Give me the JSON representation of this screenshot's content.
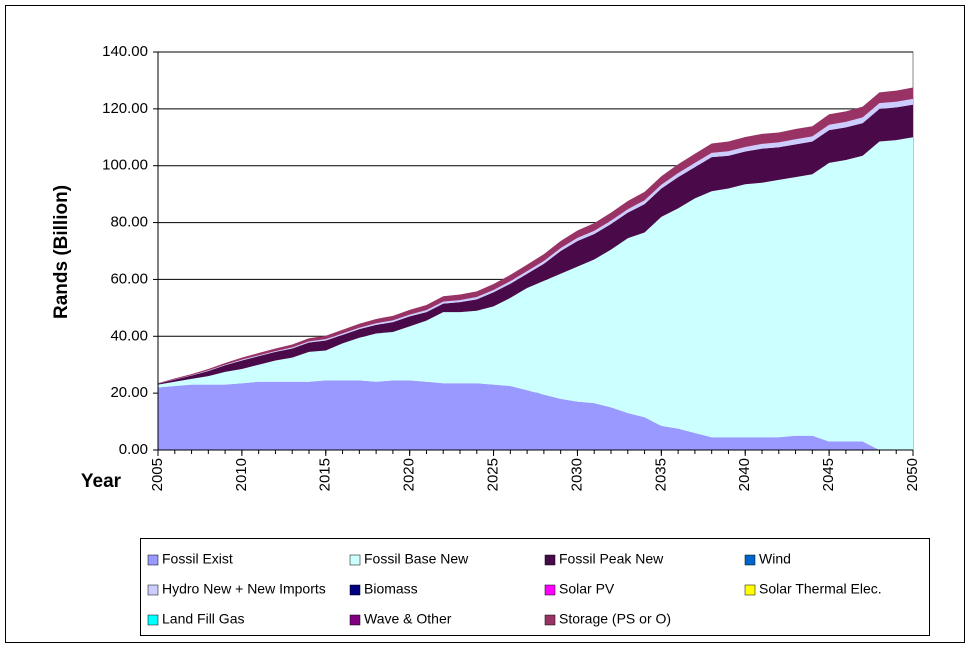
{
  "chart_data": {
    "type": "stacked-area",
    "y_label": "Rands (Billion)",
    "x_label": "Year",
    "x": [
      2005,
      2006,
      2007,
      2008,
      2009,
      2010,
      2011,
      2012,
      2013,
      2014,
      2015,
      2016,
      2017,
      2018,
      2019,
      2020,
      2021,
      2022,
      2023,
      2024,
      2025,
      2026,
      2027,
      2028,
      2029,
      2030,
      2031,
      2032,
      2033,
      2034,
      2035,
      2036,
      2037,
      2038,
      2039,
      2040,
      2041,
      2042,
      2043,
      2044,
      2045,
      2046,
      2047,
      2048,
      2049,
      2050
    ],
    "xlim": [
      2005,
      2050
    ],
    "xticks": [
      2005,
      2010,
      2015,
      2020,
      2025,
      2030,
      2035,
      2040,
      2045,
      2050
    ],
    "ylim": [
      0,
      140
    ],
    "yticks": [
      {
        "value": 0,
        "label": "0.00"
      },
      {
        "value": 20,
        "label": "20.00"
      },
      {
        "value": 40,
        "label": "40.00"
      },
      {
        "value": 60,
        "label": "60.00"
      },
      {
        "value": 80,
        "label": "80.00"
      },
      {
        "value": 100,
        "label": "100.00"
      },
      {
        "value": 120,
        "label": "120.00"
      },
      {
        "value": 140,
        "label": "140.00"
      }
    ],
    "grid": true,
    "legend": "bottom",
    "series": [
      {
        "name": "Fossil Exist",
        "color": "#9999ff",
        "values": [
          22,
          22.5,
          23,
          23,
          23,
          23.5,
          24,
          24,
          24,
          24,
          24.5,
          24.5,
          24.5,
          24,
          24.5,
          24.5,
          24,
          23.5,
          23.5,
          23.5,
          23,
          22.5,
          21,
          19.5,
          18,
          17,
          16.5,
          15,
          13,
          11.5,
          8.5,
          7.5,
          6,
          4.5,
          4.5,
          4.5,
          4.5,
          4.5,
          5,
          5,
          3,
          3,
          3,
          0,
          0,
          0
        ]
      },
      {
        "name": "Fossil Base New",
        "color": "#ccffff",
        "values": [
          1,
          1.5,
          2,
          3,
          4.5,
          5,
          6,
          7.5,
          8.5,
          10.5,
          10.5,
          13,
          15,
          17,
          17,
          19,
          21.5,
          25,
          25,
          25.5,
          27.5,
          31,
          36,
          40,
          44,
          47.5,
          50.5,
          55.5,
          61.5,
          65,
          73.5,
          77.5,
          82.5,
          86.5,
          87.5,
          89,
          89.5,
          90.5,
          91,
          92,
          98,
          99,
          100.5,
          108.5,
          109,
          110
        ]
      },
      {
        "name": "Fossil Peak New",
        "color": "#4a0a4a",
        "values": [
          0.3,
          0.8,
          1.2,
          1.8,
          2.3,
          3,
          3,
          3,
          3.2,
          3.3,
          3.5,
          3,
          3,
          3,
          3.5,
          3.5,
          3,
          3,
          3.5,
          4,
          5,
          5,
          5,
          6,
          8,
          9,
          9,
          9,
          9,
          10,
          10,
          11,
          11,
          12,
          11.5,
          11.5,
          12,
          11.5,
          11.5,
          11.5,
          11.5,
          11.5,
          11.5,
          11.5,
          11.5,
          11.5
        ]
      },
      {
        "name": "Wind",
        "color": "#0066cc",
        "values": [
          0,
          0,
          0,
          0,
          0,
          0,
          0,
          0,
          0,
          0,
          0,
          0,
          0,
          0,
          0,
          0,
          0,
          0,
          0,
          0,
          0,
          0,
          0,
          0,
          0,
          0,
          0,
          0,
          0,
          0,
          0,
          0,
          0,
          0,
          0,
          0,
          0,
          0,
          0,
          0,
          0,
          0,
          0,
          0,
          0,
          0
        ]
      },
      {
        "name": "Hydro New + New  Imports",
        "color": "#ccccff",
        "values": [
          0,
          0.1,
          0.1,
          0.2,
          0.2,
          0.3,
          0.3,
          0.3,
          0.4,
          0.4,
          0.5,
          0.5,
          0.5,
          0.6,
          0.6,
          0.6,
          0.7,
          0.7,
          0.7,
          0.8,
          0.8,
          0.9,
          0.9,
          1,
          1,
          1.1,
          1.1,
          1.2,
          1.2,
          1.3,
          1.3,
          1.4,
          1.5,
          1.5,
          1.6,
          1.6,
          1.7,
          1.7,
          1.8,
          1.8,
          1.9,
          1.9,
          2,
          2,
          2,
          2
        ]
      },
      {
        "name": "Biomass",
        "color": "#000080",
        "values": [
          0,
          0,
          0,
          0,
          0,
          0,
          0,
          0,
          0,
          0,
          0,
          0,
          0,
          0,
          0,
          0,
          0,
          0,
          0,
          0,
          0,
          0,
          0,
          0,
          0,
          0,
          0,
          0,
          0,
          0,
          0,
          0,
          0,
          0,
          0,
          0,
          0,
          0,
          0,
          0,
          0,
          0,
          0,
          0,
          0,
          0
        ]
      },
      {
        "name": "Solar PV",
        "color": "#ff00ff",
        "values": [
          0,
          0,
          0,
          0,
          0,
          0,
          0,
          0,
          0,
          0,
          0,
          0,
          0,
          0,
          0,
          0,
          0,
          0,
          0,
          0,
          0,
          0,
          0,
          0,
          0,
          0,
          0,
          0,
          0,
          0,
          0,
          0,
          0,
          0,
          0,
          0,
          0,
          0,
          0,
          0,
          0,
          0,
          0,
          0,
          0,
          0
        ]
      },
      {
        "name": "Solar Thermal Elec.",
        "color": "#ffff00",
        "values": [
          0,
          0,
          0,
          0,
          0,
          0,
          0,
          0,
          0,
          0,
          0,
          0,
          0,
          0,
          0,
          0,
          0,
          0,
          0,
          0,
          0,
          0,
          0,
          0,
          0,
          0,
          0,
          0,
          0,
          0,
          0,
          0,
          0,
          0,
          0,
          0,
          0,
          0,
          0,
          0,
          0,
          0,
          0,
          0,
          0,
          0
        ]
      },
      {
        "name": "Land Fill Gas",
        "color": "#00ffff",
        "values": [
          0,
          0,
          0,
          0,
          0,
          0,
          0,
          0,
          0,
          0,
          0,
          0,
          0,
          0,
          0,
          0,
          0,
          0,
          0,
          0,
          0,
          0,
          0,
          0,
          0,
          0,
          0,
          0,
          0,
          0,
          0,
          0,
          0,
          0,
          0,
          0,
          0,
          0,
          0,
          0,
          0,
          0,
          0,
          0,
          0,
          0
        ]
      },
      {
        "name": "Wave & Other",
        "color": "#800080",
        "values": [
          0,
          0,
          0,
          0,
          0,
          0,
          0,
          0,
          0,
          0,
          0,
          0,
          0,
          0,
          0,
          0,
          0,
          0,
          0,
          0,
          0,
          0,
          0,
          0,
          0,
          0,
          0,
          0,
          0,
          0,
          0,
          0,
          0,
          0,
          0,
          0,
          0,
          0,
          0,
          0,
          0,
          0,
          0,
          0,
          0,
          0
        ]
      },
      {
        "name": "Storage (PS or O)",
        "color": "#993366",
        "values": [
          0.2,
          0.3,
          0.4,
          0.5,
          0.6,
          0.7,
          0.8,
          0.9,
          1,
          1.1,
          1.2,
          1.3,
          1.4,
          1.5,
          1.6,
          1.7,
          1.8,
          1.9,
          2,
          2,
          2.1,
          2.2,
          2.3,
          2.4,
          2.5,
          2.6,
          2.7,
          2.8,
          2.9,
          3,
          3,
          3.1,
          3.2,
          3.3,
          3.4,
          3.5,
          3.5,
          3.5,
          3.6,
          3.6,
          3.7,
          3.7,
          3.8,
          3.8,
          3.9,
          4
        ]
      }
    ]
  }
}
